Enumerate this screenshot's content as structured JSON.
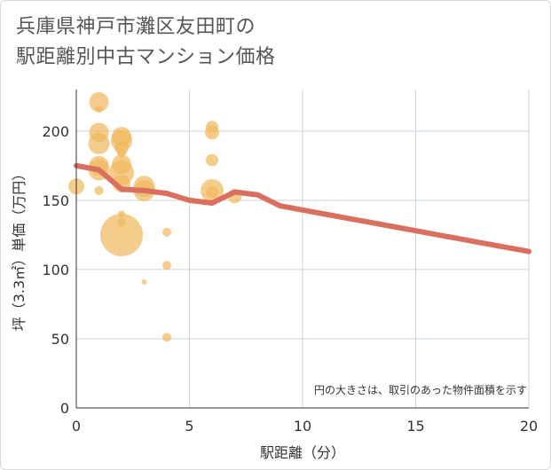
{
  "title": {
    "line1": "兵庫県神戸市灘区友田町の",
    "line2": "駅距離別中古マンション価格"
  },
  "colors": {
    "bubble": "#f0b860",
    "line": "#d9705f",
    "grid": "#c8d3dc",
    "axis": "#333333"
  },
  "chart_data": {
    "type": "scatter",
    "xlabel": "駅距離（分）",
    "ylabel": "坪（3.3㎡）単価（万円）",
    "xlim": [
      0,
      20
    ],
    "ylim": [
      0,
      230
    ],
    "xticks": [
      0,
      5,
      10,
      15,
      20
    ],
    "yticks": [
      0,
      50,
      100,
      150,
      200
    ],
    "grid": true,
    "note": "円の大きさは、取引のあった物件面積を示す",
    "bubbles": [
      {
        "x": 0,
        "y": 160,
        "size": 9
      },
      {
        "x": 1,
        "y": 221,
        "size": 11
      },
      {
        "x": 1,
        "y": 216,
        "size": 4
      },
      {
        "x": 1,
        "y": 199,
        "size": 11
      },
      {
        "x": 1,
        "y": 191,
        "size": 12
      },
      {
        "x": 1,
        "y": 175,
        "size": 11
      },
      {
        "x": 1,
        "y": 172,
        "size": 12
      },
      {
        "x": 1,
        "y": 157,
        "size": 5
      },
      {
        "x": 2,
        "y": 196,
        "size": 11
      },
      {
        "x": 2,
        "y": 193,
        "size": 12
      },
      {
        "x": 2,
        "y": 188,
        "size": 8
      },
      {
        "x": 2,
        "y": 184,
        "size": 5
      },
      {
        "x": 2,
        "y": 176,
        "size": 11
      },
      {
        "x": 2,
        "y": 170,
        "size": 14
      },
      {
        "x": 2,
        "y": 162,
        "size": 10
      },
      {
        "x": 2,
        "y": 140,
        "size": 4
      },
      {
        "x": 2,
        "y": 134,
        "size": 5
      },
      {
        "x": 2,
        "y": 125,
        "size": 24
      },
      {
        "x": 3,
        "y": 160,
        "size": 12
      },
      {
        "x": 3,
        "y": 157,
        "size": 12
      },
      {
        "x": 3,
        "y": 91,
        "size": 3
      },
      {
        "x": 4,
        "y": 127,
        "size": 5
      },
      {
        "x": 4,
        "y": 103,
        "size": 5
      },
      {
        "x": 4,
        "y": 51,
        "size": 5
      },
      {
        "x": 6,
        "y": 203,
        "size": 7
      },
      {
        "x": 6,
        "y": 199,
        "size": 8
      },
      {
        "x": 6,
        "y": 179,
        "size": 7
      },
      {
        "x": 6,
        "y": 157,
        "size": 13
      },
      {
        "x": 6,
        "y": 156,
        "size": 7
      },
      {
        "x": 7,
        "y": 153,
        "size": 8
      }
    ],
    "trend": {
      "x": [
        0,
        1,
        2,
        3,
        4,
        5,
        6,
        7,
        8,
        9,
        10,
        11,
        12,
        13,
        14,
        15,
        16,
        17,
        18,
        19,
        20
      ],
      "y": [
        175,
        172,
        158,
        157,
        155,
        150,
        148,
        156,
        154,
        146,
        143,
        140,
        137,
        134,
        131,
        128,
        125,
        122,
        119,
        116,
        113
      ]
    }
  }
}
